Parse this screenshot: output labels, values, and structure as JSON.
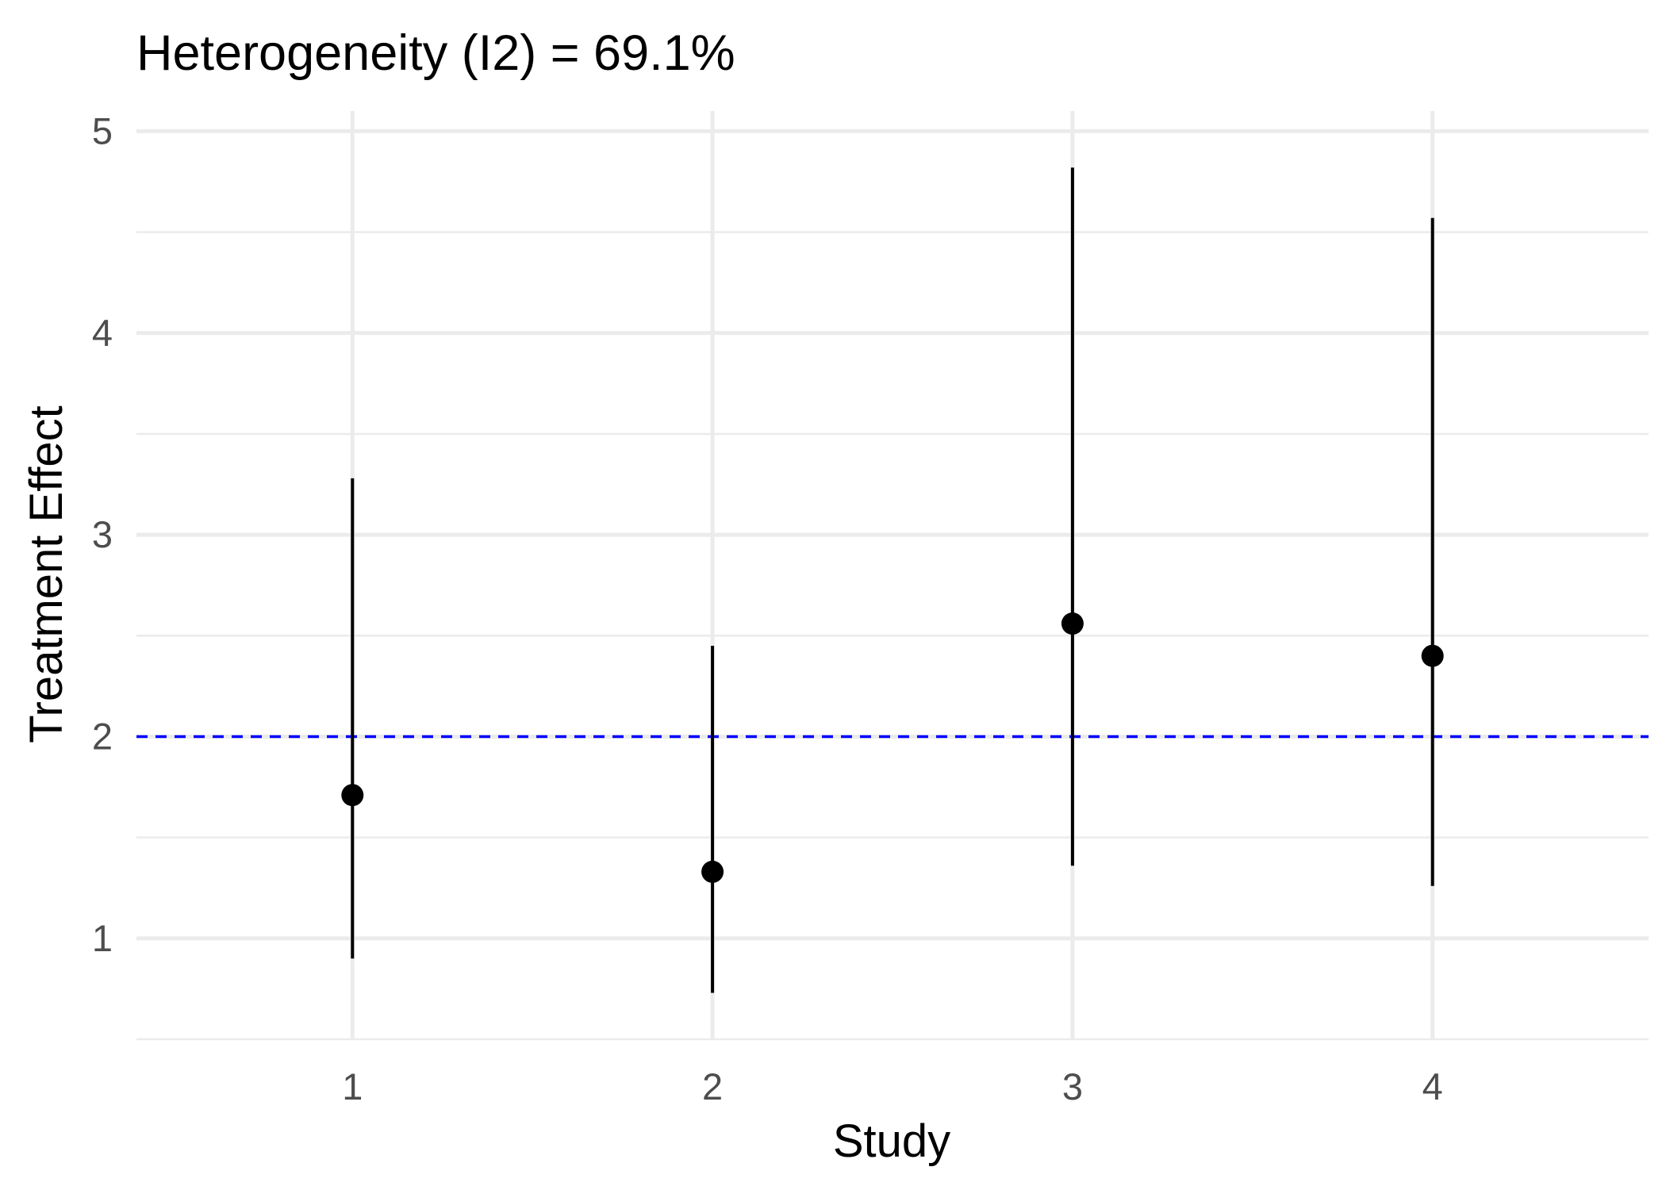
{
  "chart_data": {
    "type": "scatter",
    "title": "Heterogeneity (I2) = 69.1%",
    "xlabel": "Study",
    "ylabel": "Treatment Effect",
    "categories": [
      "1",
      "2",
      "3",
      "4"
    ],
    "x": [
      1,
      2,
      3,
      4
    ],
    "y": [
      1.71,
      1.33,
      2.56,
      2.4
    ],
    "ci_lower": [
      0.9,
      0.73,
      1.36,
      1.26
    ],
    "ci_upper": [
      3.28,
      2.45,
      4.82,
      4.57
    ],
    "xlim": [
      0.4,
      4.6
    ],
    "ylim": [
      0.5,
      5.1
    ],
    "y_ticks": [
      1,
      2,
      3,
      4,
      5
    ],
    "y_tick_labels": [
      "1",
      "2",
      "3",
      "4",
      "5"
    ],
    "x_tick_labels": [
      "1",
      "2",
      "3",
      "4"
    ],
    "reference_line": {
      "y": 2.0,
      "style": "dashed",
      "color": "#0000ff"
    },
    "grid": true,
    "legend": "none",
    "colors": {
      "points": "#000000",
      "errorbars": "#000000"
    }
  }
}
